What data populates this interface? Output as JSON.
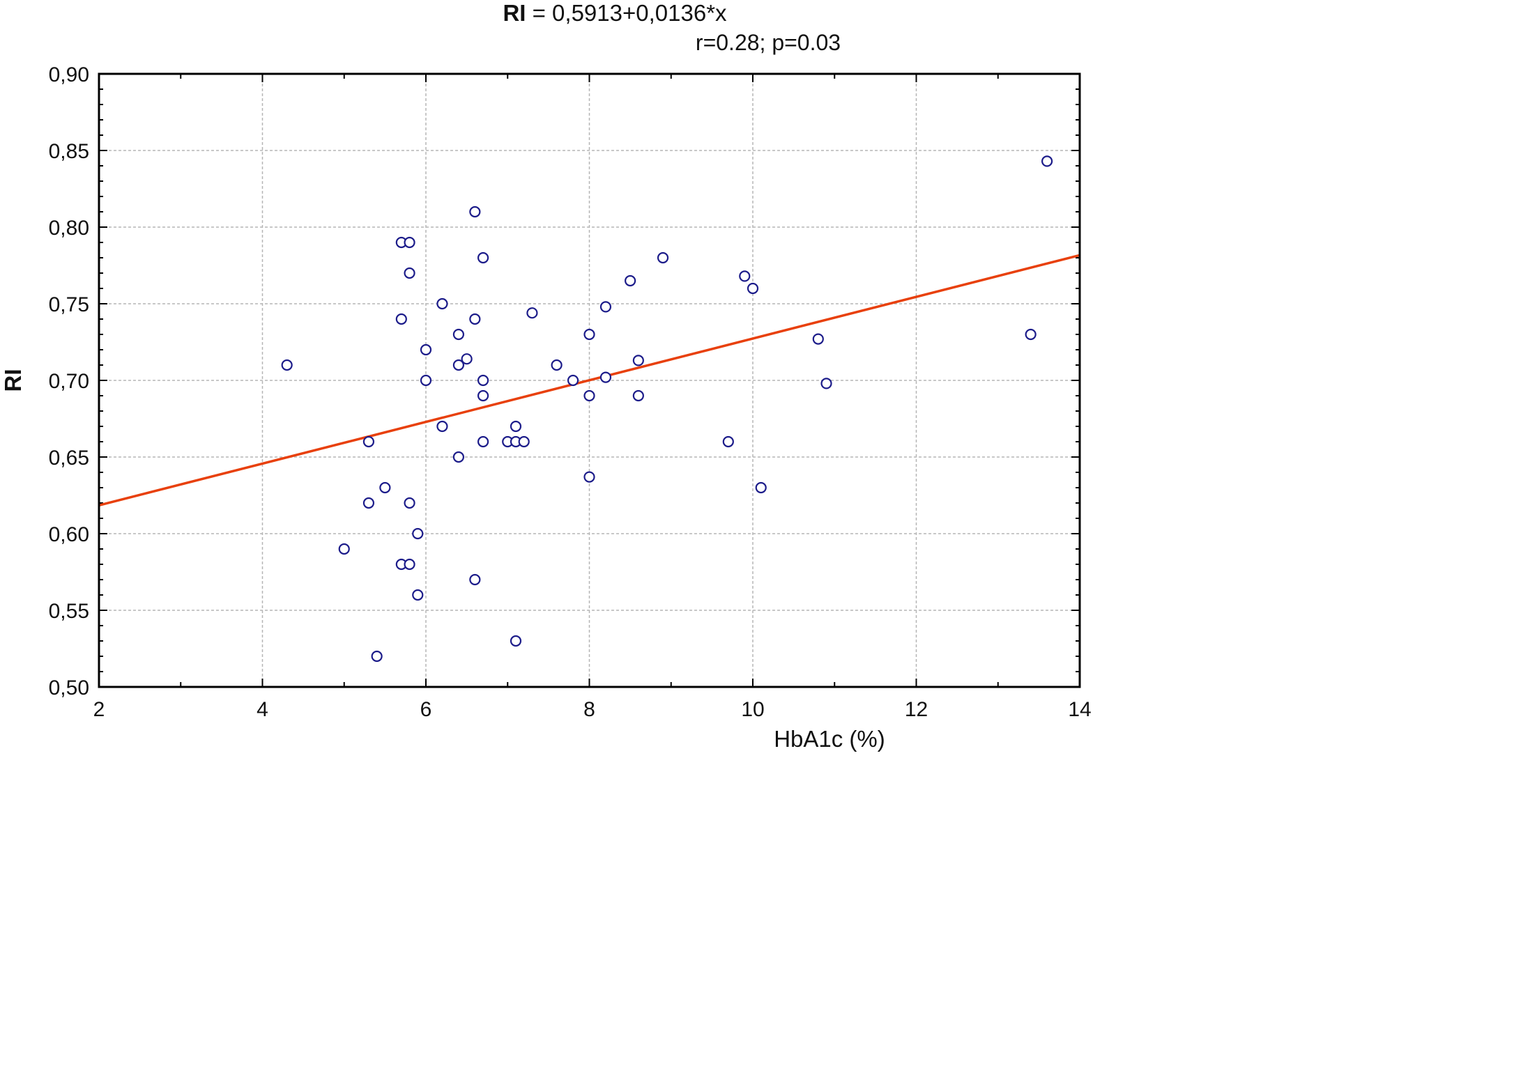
{
  "chart_data": {
    "type": "scatter",
    "title_var": "RI",
    "title_eq": " = 0,5913+0,0136*x",
    "subtitle": "r=0.28; p=0.03",
    "xlabel": "HbA1c (%)",
    "ylabel": "RI",
    "xlim": [
      2,
      14
    ],
    "ylim": [
      0.5,
      0.9
    ],
    "grid": true,
    "xticks": [
      2,
      4,
      6,
      8,
      10,
      12,
      14
    ],
    "xtick_labels": [
      "2",
      "4",
      "6",
      "8",
      "10",
      "12",
      "14"
    ],
    "yticks": [
      0.5,
      0.55,
      0.6,
      0.65,
      0.7,
      0.75,
      0.8,
      0.85,
      0.9
    ],
    "ytick_labels": [
      "0,50",
      "0,55",
      "0,60",
      "0,65",
      "0,70",
      "0,75",
      "0,80",
      "0,85",
      "0,90"
    ],
    "regression": {
      "intercept": 0.5913,
      "slope": 0.0136,
      "color": "#e8400c"
    },
    "marker_color": "#1c1c8a",
    "points": [
      [
        4.3,
        0.71
      ],
      [
        5.0,
        0.59
      ],
      [
        5.3,
        0.66
      ],
      [
        5.3,
        0.62
      ],
      [
        5.4,
        0.52
      ],
      [
        5.5,
        0.63
      ],
      [
        5.7,
        0.79
      ],
      [
        5.8,
        0.79
      ],
      [
        5.8,
        0.77
      ],
      [
        5.7,
        0.74
      ],
      [
        5.7,
        0.58
      ],
      [
        5.8,
        0.58
      ],
      [
        5.8,
        0.62
      ],
      [
        5.9,
        0.6
      ],
      [
        5.9,
        0.56
      ],
      [
        6.0,
        0.72
      ],
      [
        6.0,
        0.7
      ],
      [
        6.2,
        0.75
      ],
      [
        6.2,
        0.67
      ],
      [
        6.4,
        0.73
      ],
      [
        6.4,
        0.71
      ],
      [
        6.4,
        0.65
      ],
      [
        6.5,
        0.714
      ],
      [
        6.6,
        0.81
      ],
      [
        6.6,
        0.74
      ],
      [
        6.6,
        0.57
      ],
      [
        6.7,
        0.78
      ],
      [
        6.7,
        0.7
      ],
      [
        6.7,
        0.69
      ],
      [
        6.7,
        0.66
      ],
      [
        7.0,
        0.66
      ],
      [
        7.1,
        0.67
      ],
      [
        7.1,
        0.66
      ],
      [
        7.1,
        0.53
      ],
      [
        7.2,
        0.66
      ],
      [
        7.3,
        0.744
      ],
      [
        7.6,
        0.71
      ],
      [
        7.8,
        0.7
      ],
      [
        8.0,
        0.73
      ],
      [
        8.0,
        0.69
      ],
      [
        8.0,
        0.637
      ],
      [
        8.2,
        0.748
      ],
      [
        8.2,
        0.702
      ],
      [
        8.5,
        0.765
      ],
      [
        8.6,
        0.713
      ],
      [
        8.6,
        0.69
      ],
      [
        8.9,
        0.78
      ],
      [
        9.7,
        0.66
      ],
      [
        9.9,
        0.768
      ],
      [
        10.0,
        0.76
      ],
      [
        10.1,
        0.63
      ],
      [
        10.8,
        0.727
      ],
      [
        10.9,
        0.698
      ],
      [
        13.4,
        0.73
      ],
      [
        13.6,
        0.843
      ]
    ]
  }
}
